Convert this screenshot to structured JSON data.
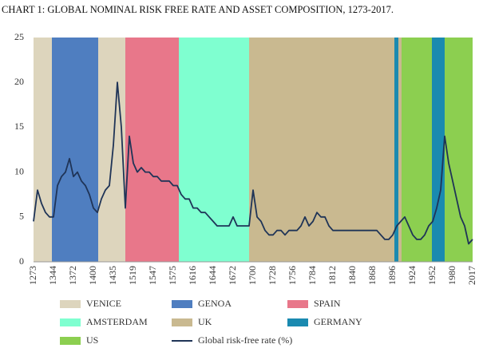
{
  "chart_data": {
    "type": "line",
    "title": "CHART 1: GLOBAL NOMINAL RISK FREE RATE AND ASSET COMPOSITION, 1273-2017.",
    "categories": [
      "1273",
      null,
      null,
      null,
      null,
      "1344",
      null,
      null,
      null,
      null,
      "1372",
      null,
      null,
      null,
      null,
      "1400",
      null,
      null,
      null,
      null,
      "1435",
      null,
      null,
      null,
      null,
      "1519",
      null,
      null,
      null,
      null,
      "1547",
      null,
      null,
      null,
      null,
      "1575",
      null,
      null,
      null,
      null,
      "1616",
      null,
      null,
      null,
      null,
      "1644",
      null,
      null,
      null,
      null,
      "1672",
      null,
      null,
      null,
      null,
      "1700",
      null,
      null,
      null,
      null,
      "1728",
      null,
      null,
      null,
      null,
      "1756",
      null,
      null,
      null,
      null,
      "1784",
      null,
      null,
      null,
      null,
      "1812",
      null,
      null,
      null,
      null,
      "1840",
      null,
      null,
      null,
      null,
      "1868",
      null,
      null,
      null,
      null,
      "1896",
      null,
      null,
      null,
      null,
      "1924",
      null,
      null,
      null,
      null,
      "1952",
      null,
      null,
      null,
      null,
      "1980",
      null,
      null,
      null,
      null,
      "2017"
    ],
    "series": [
      {
        "name": "Global risk-free rate (%)",
        "color": "#1f3457",
        "values": [
          4.5,
          8,
          6.5,
          5.5,
          5,
          5,
          8.5,
          9.5,
          10,
          11.5,
          9.5,
          10,
          9,
          8.5,
          7.5,
          6,
          5.5,
          7,
          8,
          8.5,
          13,
          20,
          15,
          6,
          14,
          11,
          10,
          10.5,
          10,
          10,
          9.5,
          9.5,
          9,
          9,
          9,
          8.5,
          8.5,
          7.5,
          7,
          7,
          6,
          6,
          5.5,
          5.5,
          5,
          4.5,
          4,
          4,
          4,
          4,
          5,
          4,
          4,
          4,
          4,
          8,
          5,
          4.5,
          3.5,
          3,
          3,
          3.5,
          3.5,
          3,
          3.5,
          3.5,
          3.5,
          4,
          5,
          4,
          4.5,
          5.5,
          5,
          5,
          4,
          3.5,
          3.5,
          3.5,
          3.5,
          3.5,
          3.5,
          3.5,
          3.5,
          3.5,
          3.5,
          3.5,
          3.5,
          3,
          2.5,
          2.5,
          3,
          4,
          4.5,
          5,
          4,
          3,
          2.5,
          2.5,
          3,
          4,
          4.5,
          6,
          8,
          14,
          11,
          9,
          7,
          5,
          4,
          2,
          2.5
        ]
      }
    ],
    "bands": [
      {
        "name": "VENICE",
        "color": "#ddd5bd",
        "spans": [
          [
            0,
            4.6
          ],
          [
            16.2,
            23
          ]
        ]
      },
      {
        "name": "GENOA",
        "color": "#4f7ec0",
        "spans": [
          [
            4.6,
            16.2
          ]
        ]
      },
      {
        "name": "SPAIN",
        "color": "#e8778a",
        "spans": [
          [
            23,
            36.4
          ]
        ]
      },
      {
        "name": "AMSTERDAM",
        "color": "#7fffd0",
        "spans": [
          [
            36.4,
            54
          ]
        ]
      },
      {
        "name": "UK",
        "color": "#c9b990",
        "spans": [
          [
            54,
            90.4
          ],
          [
            91.4,
            92.2
          ]
        ]
      },
      {
        "name": "GERMANY",
        "color": "#1a8ab0",
        "spans": [
          [
            90.4,
            91.4
          ],
          [
            99.8,
            103
          ]
        ]
      },
      {
        "name": "US",
        "color": "#8ccf50",
        "spans": [
          [
            92.2,
            99.8
          ],
          [
            103,
            110
          ]
        ]
      }
    ],
    "ylim": [
      0,
      25
    ],
    "yticks": [
      0,
      5,
      10,
      15,
      20,
      25
    ]
  }
}
